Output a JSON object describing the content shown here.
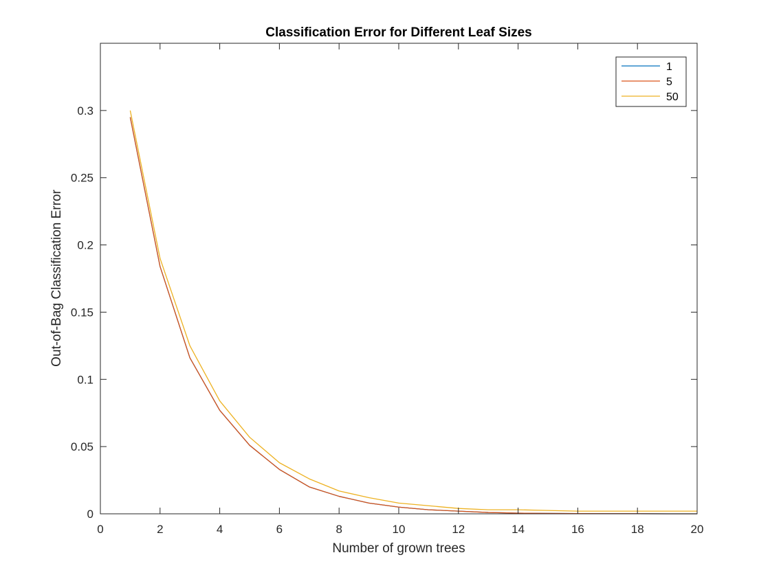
{
  "chart_data": {
    "type": "line",
    "title": "Classification Error for Different Leaf Sizes",
    "xlabel": "Number of grown trees",
    "ylabel": "Out-of-Bag Classification Error",
    "xlim": [
      0,
      20
    ],
    "ylim": [
      0,
      0.35
    ],
    "xticks": [
      0,
      2,
      4,
      6,
      8,
      10,
      12,
      14,
      16,
      18,
      20
    ],
    "yticks": [
      0,
      0.05,
      0.1,
      0.15,
      0.2,
      0.25,
      0.3
    ],
    "grid": false,
    "legend_position": "top-right",
    "x": [
      1,
      2,
      3,
      4,
      5,
      6,
      7,
      8,
      9,
      10,
      11,
      12,
      13,
      14,
      15,
      16,
      17,
      18,
      19,
      20
    ],
    "series": [
      {
        "name": "1",
        "color": "#0072BD",
        "values": [
          0.295,
          0.184,
          0.116,
          0.077,
          0.051,
          0.033,
          0.02,
          0.013,
          0.008,
          0.005,
          0.003,
          0.002,
          0.001,
          0.0005,
          0.0003,
          0.0002,
          0.0001,
          0.0001,
          0.0,
          0.0
        ]
      },
      {
        "name": "5",
        "color": "#D95319",
        "values": [
          0.295,
          0.184,
          0.116,
          0.077,
          0.051,
          0.033,
          0.02,
          0.013,
          0.008,
          0.005,
          0.003,
          0.002,
          0.001,
          0.0005,
          0.0003,
          0.0002,
          0.0001,
          0.0001,
          0.0,
          0.0
        ]
      },
      {
        "name": "50",
        "color": "#EDB120",
        "values": [
          0.3,
          0.19,
          0.125,
          0.084,
          0.057,
          0.038,
          0.026,
          0.017,
          0.012,
          0.008,
          0.006,
          0.004,
          0.003,
          0.003,
          0.0025,
          0.002,
          0.002,
          0.002,
          0.002,
          0.002
        ]
      }
    ]
  }
}
